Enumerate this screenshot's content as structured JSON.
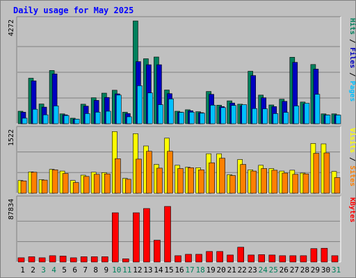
{
  "title": "Daily usage for May 2025",
  "chart_data": {
    "type": "bar",
    "title": "Daily usage for May 2025",
    "days": [
      "1",
      "2",
      "3",
      "4",
      "5",
      "6",
      "7",
      "8",
      "9",
      "10",
      "11",
      "12",
      "13",
      "14",
      "15",
      "16",
      "17",
      "18",
      "19",
      "20",
      "21",
      "22",
      "23",
      "24",
      "25",
      "26",
      "27",
      "28",
      "29",
      "30",
      "31"
    ],
    "weekend_days": [
      "3",
      "4",
      "10",
      "11",
      "17",
      "18",
      "24",
      "25",
      "31"
    ],
    "panels": [
      {
        "id": "hits",
        "ymax_label": "4272",
        "ymax": 4272,
        "side_labels": [
          {
            "text": "Pages",
            "color": "#00c0ff"
          },
          {
            "text": "Files",
            "color": "#0000c0"
          },
          {
            "text": "Hits",
            "color": "#00805c"
          }
        ],
        "series": [
          {
            "name": "Hits",
            "color": "#00805c",
            "values": [
              520,
              1890,
              820,
              2210,
              410,
              230,
              810,
              1080,
              1270,
              1390,
              480,
              4270,
              2700,
              2770,
              1400,
              520,
              580,
              500,
              1340,
              770,
              950,
              810,
              2180,
              1190,
              780,
              1020,
              2760,
              900,
              2460,
              410,
              410
            ]
          },
          {
            "name": "Files",
            "color": "#0000c0",
            "values": [
              480,
              1780,
              690,
              2070,
              370,
              190,
              730,
              970,
              1090,
              1240,
              420,
              2580,
              2450,
              2450,
              1250,
              480,
              540,
              460,
              1220,
              710,
              860,
              740,
              2000,
              1080,
              710,
              930,
              2550,
              820,
              2270,
              370,
              370
            ]
          },
          {
            "name": "Pages",
            "color": "#00c0ff",
            "values": [
              230,
              600,
              370,
              740,
              340,
              190,
              420,
              480,
              520,
              1190,
              290,
              1580,
              1280,
              790,
              1030,
              470,
              480,
              440,
              770,
              670,
              760,
              790,
              630,
              620,
              420,
              470,
              740,
              850,
              1220,
              360,
              360
            ]
          }
        ]
      },
      {
        "id": "visits",
        "ymax_label": "1522",
        "ymax": 1522,
        "side_labels": [
          {
            "text": "Sites",
            "color": "#ff8000"
          },
          {
            "text": "Visits",
            "color": "#ffff00"
          }
        ],
        "series": [
          {
            "name": "Visits",
            "color": "#ffff00",
            "values": [
              310,
              520,
              330,
              580,
              540,
              310,
              440,
              510,
              500,
              1500,
              360,
              1450,
              1150,
              700,
              1340,
              680,
              630,
              620,
              960,
              960,
              450,
              820,
              570,
              680,
              600,
              540,
              560,
              490,
              1210,
              1200,
              530
            ]
          },
          {
            "name": "Sites",
            "color": "#ff8000",
            "values": [
              300,
              510,
              320,
              570,
              480,
              260,
              410,
              460,
              470,
              840,
              340,
              830,
              1020,
              610,
              1020,
              600,
              620,
              570,
              740,
              850,
              430,
              700,
              540,
              600,
              560,
              490,
              460,
              470,
              970,
              980,
              380
            ]
          }
        ]
      },
      {
        "id": "kbytes",
        "ymax_label": "87834",
        "ymax": 87834,
        "side_labels": [
          {
            "text": "KBytes",
            "color": "#ff0000"
          }
        ],
        "series": [
          {
            "name": "KBytes",
            "color": "#ff0000",
            "values": [
              6000,
              7500,
              6000,
              9000,
              8500,
              6000,
              7500,
              7500,
              7500,
              70000,
              4500,
              70000,
              76000,
              31000,
              79000,
              9000,
              11000,
              11000,
              15000,
              15000,
              10000,
              21000,
              10000,
              10500,
              10000,
              9000,
              9000,
              9000,
              19000,
              19500,
              9000
            ]
          }
        ]
      }
    ]
  }
}
